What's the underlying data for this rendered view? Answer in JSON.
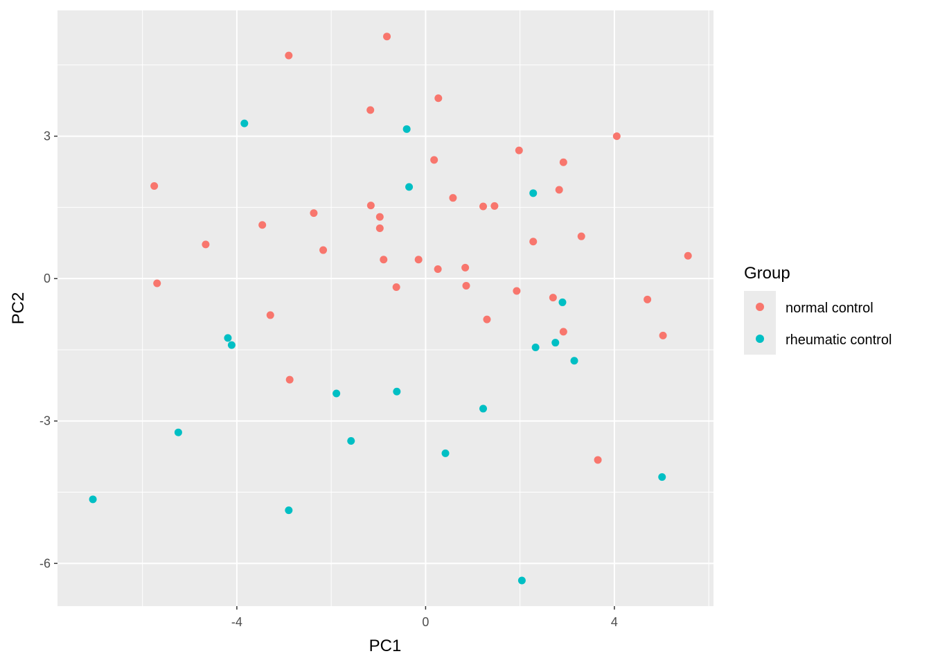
{
  "chart_data": {
    "type": "scatter",
    "title": "",
    "xlabel": "PC1",
    "ylabel": "PC2",
    "xlim": [
      -7.8,
      6.1
    ],
    "ylim": [
      -6.9,
      5.65
    ],
    "xticks": [
      -4,
      0,
      4
    ],
    "yticks": [
      -6,
      -3,
      0,
      3
    ],
    "xtick_labels": [
      "-4",
      "0",
      "4"
    ],
    "ytick_labels": [
      "-6",
      "-3",
      "0",
      "3"
    ],
    "grid": true,
    "legend": {
      "title": "Group",
      "position": "right"
    },
    "series": [
      {
        "name": "normal control",
        "color": "#F8766D",
        "points": [
          [
            -0.82,
            5.1
          ],
          [
            -2.9,
            4.7
          ],
          [
            0.27,
            3.8
          ],
          [
            -1.17,
            3.55
          ],
          [
            4.05,
            3.0
          ],
          [
            1.98,
            2.7
          ],
          [
            0.18,
            2.5
          ],
          [
            2.92,
            2.45
          ],
          [
            -5.75,
            1.95
          ],
          [
            2.83,
            1.87
          ],
          [
            0.58,
            1.7
          ],
          [
            1.22,
            1.52
          ],
          [
            1.46,
            1.53
          ],
          [
            -1.16,
            1.54
          ],
          [
            -2.37,
            1.38
          ],
          [
            -0.97,
            1.3
          ],
          [
            -3.46,
            1.13
          ],
          [
            -0.97,
            1.06
          ],
          [
            3.3,
            0.89
          ],
          [
            2.28,
            0.78
          ],
          [
            -4.66,
            0.72
          ],
          [
            -2.17,
            0.6
          ],
          [
            5.56,
            0.48
          ],
          [
            -0.89,
            0.4
          ],
          [
            -0.15,
            0.4
          ],
          [
            0.84,
            0.23
          ],
          [
            0.26,
            0.2
          ],
          [
            -5.69,
            -0.1
          ],
          [
            0.86,
            -0.15
          ],
          [
            -0.62,
            -0.18
          ],
          [
            1.93,
            -0.26
          ],
          [
            2.7,
            -0.4
          ],
          [
            4.7,
            -0.44
          ],
          [
            -3.29,
            -0.77
          ],
          [
            1.3,
            -0.86
          ],
          [
            2.92,
            -1.12
          ],
          [
            5.03,
            -1.2
          ],
          [
            -2.88,
            -2.13
          ],
          [
            3.65,
            -3.82
          ]
        ]
      },
      {
        "name": "rheumatic control",
        "color": "#00BFC4",
        "points": [
          [
            -3.84,
            3.27
          ],
          [
            -0.4,
            3.15
          ],
          [
            -0.35,
            1.93
          ],
          [
            2.28,
            1.8
          ],
          [
            2.9,
            -0.5
          ],
          [
            -4.19,
            -1.25
          ],
          [
            -4.11,
            -1.4
          ],
          [
            2.75,
            -1.35
          ],
          [
            2.33,
            -1.45
          ],
          [
            3.15,
            -1.73
          ],
          [
            -1.89,
            -2.42
          ],
          [
            -0.61,
            -2.38
          ],
          [
            1.22,
            -2.74
          ],
          [
            -1.58,
            -3.42
          ],
          [
            -5.24,
            -3.24
          ],
          [
            0.42,
            -3.68
          ],
          [
            5.01,
            -4.18
          ],
          [
            -7.05,
            -4.65
          ],
          [
            -2.9,
            -4.88
          ],
          [
            2.04,
            -6.36
          ]
        ]
      }
    ]
  }
}
